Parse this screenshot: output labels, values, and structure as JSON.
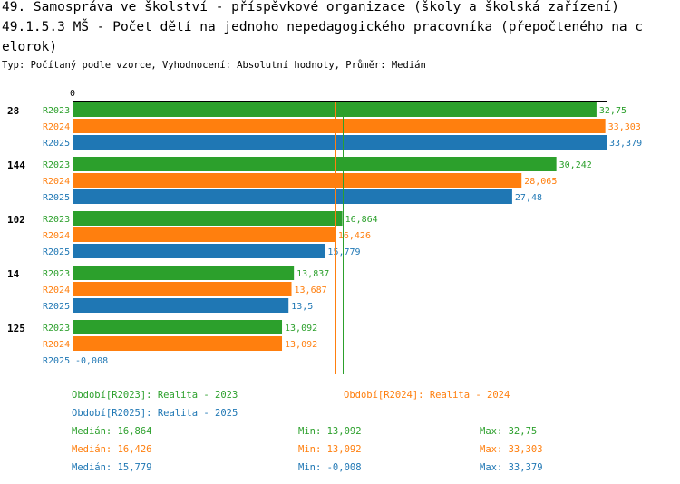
{
  "title_lines": [
    "49. Samospráva ve školství - příspěvkové organizace (školy a školská zařízení)",
    "49.1.5.3 MŠ - Počet dětí na jednoho nepedagogického pracovníka (přepočteného na c",
    "elorok)"
  ],
  "subtitle": "Typ: Počítaný podle vzorce, Vyhodnocení: Absolutní hodnoty, Průměr: Medián",
  "colors": {
    "R2023": "#2ca02c",
    "R2024": "#ff7f0e",
    "R2025": "#1f77b4"
  },
  "chart_data": {
    "type": "bar",
    "orientation": "horizontal",
    "axis_zero_label": "0",
    "xlim": [
      0,
      33.379
    ],
    "categories": [
      "28",
      "144",
      "102",
      "14",
      "125"
    ],
    "series": [
      {
        "name": "R2023",
        "values": [
          32.75,
          30.242,
          16.864,
          13.837,
          13.092
        ],
        "labels": [
          "32,75",
          "30,242",
          "16,864",
          "13,837",
          "13,092"
        ]
      },
      {
        "name": "R2024",
        "values": [
          33.303,
          28.065,
          16.426,
          13.687,
          13.092
        ],
        "labels": [
          "33,303",
          "28,065",
          "16,426",
          "13,687",
          "13,092"
        ]
      },
      {
        "name": "R2025",
        "values": [
          33.379,
          27.48,
          15.779,
          13.5,
          -0.008
        ],
        "labels": [
          "33,379",
          "27,48",
          "15,779",
          "13,5",
          "-0,008"
        ]
      }
    ],
    "median_lines": [
      {
        "series": "R2023",
        "value": 16.864
      },
      {
        "series": "R2024",
        "value": 16.426
      },
      {
        "series": "R2025",
        "value": 15.779
      }
    ]
  },
  "legend": {
    "r2023": "Období[R2023]: Realita - 2023",
    "r2024": "Období[R2024]: Realita - 2024",
    "r2025": "Období[R2025]: Realita - 2025"
  },
  "stats": [
    {
      "median": "Medián: 16,864",
      "min": "Min: 13,092",
      "max": "Max: 32,75"
    },
    {
      "median": "Medián: 16,426",
      "min": "Min: 13,092",
      "max": "Max: 33,303"
    },
    {
      "median": "Medián: 15,779",
      "min": "Min: -0,008",
      "max": "Max: 33,379"
    }
  ]
}
